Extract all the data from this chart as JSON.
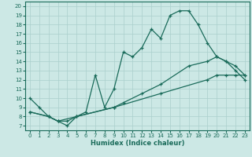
{
  "xlabel": "Humidex (Indice chaleur)",
  "bg_color": "#cce8e5",
  "grid_color": "#aacfcc",
  "line_color": "#1a6b5a",
  "xlim": [
    -0.5,
    23.5
  ],
  "ylim": [
    6.5,
    20.5
  ],
  "xticks": [
    0,
    1,
    2,
    3,
    4,
    5,
    6,
    7,
    8,
    9,
    10,
    11,
    12,
    13,
    14,
    15,
    16,
    17,
    18,
    19,
    20,
    21,
    22,
    23
  ],
  "yticks": [
    7,
    8,
    9,
    10,
    11,
    12,
    13,
    14,
    15,
    16,
    17,
    18,
    19,
    20
  ],
  "line1_x": [
    0,
    1,
    2,
    3,
    4,
    5,
    6,
    7,
    8,
    9,
    10,
    11,
    12,
    13,
    14,
    15,
    16,
    17,
    18,
    19,
    20,
    21,
    22,
    23
  ],
  "line1_y": [
    10.0,
    9.0,
    8.0,
    7.5,
    7.0,
    8.0,
    8.5,
    12.5,
    9.0,
    11.0,
    15.0,
    14.5,
    15.5,
    17.5,
    16.5,
    19.0,
    19.5,
    19.5,
    18.0,
    16.0,
    14.5,
    14.0,
    13.0,
    12.0
  ],
  "line2_x": [
    0,
    2,
    3,
    4,
    5,
    9,
    10,
    12,
    14,
    17,
    19,
    20,
    21,
    22,
    23
  ],
  "line2_y": [
    8.5,
    8.0,
    7.5,
    7.5,
    8.0,
    9.0,
    9.5,
    10.5,
    11.5,
    13.5,
    14.0,
    14.5,
    14.0,
    13.5,
    12.5
  ],
  "line3_x": [
    0,
    2,
    3,
    5,
    9,
    14,
    19,
    20,
    21,
    22,
    23
  ],
  "line3_y": [
    8.5,
    8.0,
    7.5,
    8.0,
    9.0,
    10.5,
    12.0,
    12.5,
    12.5,
    12.5,
    12.5
  ]
}
